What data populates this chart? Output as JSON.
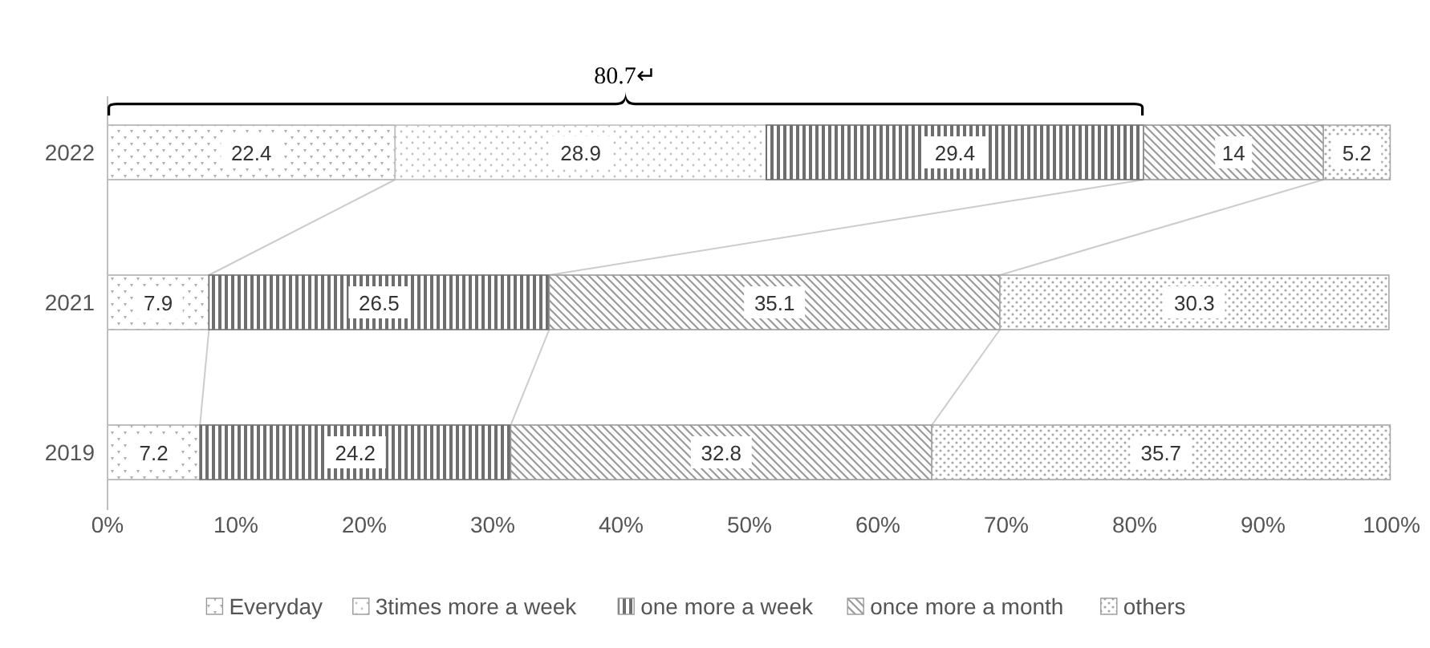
{
  "chart_data": {
    "type": "bar",
    "orientation": "horizontal",
    "stacked": true,
    "categories": [
      "2022",
      "2021",
      "2019"
    ],
    "series": [
      {
        "name": "Everyday",
        "color": "#b0b0b0",
        "values": [
          22.4,
          7.9,
          7.2
        ]
      },
      {
        "name": "3times more a week",
        "color": "#c0c0c0",
        "values": [
          28.9,
          null,
          null
        ]
      },
      {
        "name": "one more a week",
        "color": "#6e6e6e",
        "values": [
          29.4,
          26.5,
          24.2
        ]
      },
      {
        "name": "once more a month",
        "color": "#9a9a9a",
        "values": [
          14,
          35.1,
          32.8
        ]
      },
      {
        "name": "others",
        "color": "#a8a8a8",
        "values": [
          5.2,
          30.3,
          35.7
        ]
      }
    ],
    "xlim": [
      0,
      100
    ],
    "xticks": [
      {
        "value": 0,
        "label": "0%"
      },
      {
        "value": 10,
        "label": "10%"
      },
      {
        "value": 20,
        "label": "20%"
      },
      {
        "value": 30,
        "label": "30%"
      },
      {
        "value": 40,
        "label": "40%"
      },
      {
        "value": 50,
        "label": "50%"
      },
      {
        "value": 60,
        "label": "60%"
      },
      {
        "value": 70,
        "label": "70%"
      },
      {
        "value": 80,
        "label": "80%"
      },
      {
        "value": 90,
        "label": "90%"
      },
      {
        "value": 100,
        "label": "100%"
      }
    ],
    "data_labels": true,
    "legend": "bottom",
    "grid": false,
    "annotations": [
      "80.7↵"
    ]
  }
}
